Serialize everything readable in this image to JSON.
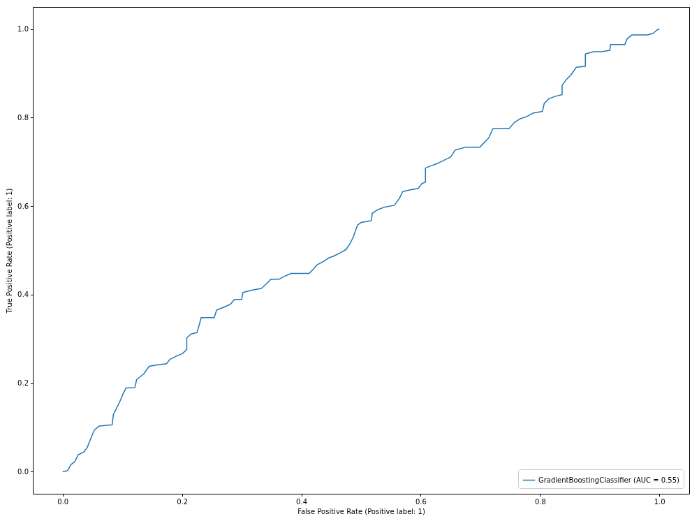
{
  "chart_data": {
    "type": "line",
    "xlabel": "False Positive Rate (Positive label: 1)",
    "ylabel": "True Positive Rate (Positive label: 1)",
    "xlim": [
      -0.05,
      1.05
    ],
    "ylim": [
      -0.05,
      1.05
    ],
    "xticks": [
      {
        "value": 0,
        "label": "0.0"
      },
      {
        "value": 0.2,
        "label": "0.2"
      },
      {
        "value": 0.4,
        "label": "0.4"
      },
      {
        "value": 0.6,
        "label": "0.6"
      },
      {
        "value": 0.8,
        "label": "0.8"
      },
      {
        "value": 1,
        "label": "1.0"
      }
    ],
    "yticks": [
      {
        "value": 0,
        "label": "0.0"
      },
      {
        "value": 0.2,
        "label": "0.2"
      },
      {
        "value": 0.4,
        "label": "0.4"
      },
      {
        "value": 0.6,
        "label": "0.6"
      },
      {
        "value": 0.8,
        "label": "0.8"
      },
      {
        "value": 1,
        "label": "1.0"
      }
    ],
    "grid": false,
    "legend": "bottom right",
    "series": [
      {
        "name": "GradientBoostingClassifier (AUC = 0.55)",
        "color": "#1f77b4",
        "x": [
          0,
          0.008,
          0.014,
          0.02,
          0.026,
          0.035,
          0.041,
          0.046,
          0.053,
          0.061,
          0.083,
          0.085,
          0.095,
          0.101,
          0.106,
          0.121,
          0.124,
          0.136,
          0.145,
          0.158,
          0.174,
          0.18,
          0.192,
          0.201,
          0.208,
          0.208,
          0.215,
          0.225,
          0.229,
          0.232,
          0.254,
          0.258,
          0.269,
          0.281,
          0.288,
          0.3,
          0.302,
          0.317,
          0.333,
          0.342,
          0.349,
          0.363,
          0.371,
          0.383,
          0.413,
          0.419,
          0.426,
          0.437,
          0.446,
          0.454,
          0.466,
          0.475,
          0.481,
          0.487,
          0.494,
          0.5,
          0.517,
          0.519,
          0.528,
          0.54,
          0.556,
          0.564,
          0.57,
          0.583,
          0.596,
          0.602,
          0.608,
          0.608,
          0.615,
          0.629,
          0.641,
          0.65,
          0.658,
          0.675,
          0.699,
          0.706,
          0.714,
          0.721,
          0.748,
          0.757,
          0.766,
          0.777,
          0.788,
          0.804,
          0.807,
          0.815,
          0.828,
          0.837,
          0.837,
          0.844,
          0.852,
          0.861,
          0.876,
          0.876,
          0.89,
          0.904,
          0.917,
          0.918,
          0.942,
          0.946,
          0.954,
          0.98,
          0.989,
          0.996,
          1
        ],
        "values": [
          0,
          0.002,
          0.016,
          0.022,
          0.038,
          0.044,
          0.054,
          0.071,
          0.094,
          0.103,
          0.106,
          0.129,
          0.156,
          0.175,
          0.189,
          0.19,
          0.208,
          0.221,
          0.238,
          0.241,
          0.244,
          0.254,
          0.262,
          0.267,
          0.276,
          0.302,
          0.311,
          0.314,
          0.332,
          0.348,
          0.348,
          0.365,
          0.371,
          0.378,
          0.389,
          0.389,
          0.405,
          0.41,
          0.414,
          0.425,
          0.435,
          0.435,
          0.441,
          0.448,
          0.448,
          0.456,
          0.467,
          0.475,
          0.483,
          0.487,
          0.495,
          0.502,
          0.514,
          0.53,
          0.557,
          0.563,
          0.567,
          0.584,
          0.592,
          0.598,
          0.602,
          0.617,
          0.633,
          0.637,
          0.64,
          0.651,
          0.654,
          0.686,
          0.69,
          0.697,
          0.705,
          0.711,
          0.727,
          0.733,
          0.733,
          0.743,
          0.754,
          0.775,
          0.775,
          0.789,
          0.797,
          0.802,
          0.81,
          0.814,
          0.832,
          0.843,
          0.849,
          0.852,
          0.873,
          0.886,
          0.897,
          0.914,
          0.916,
          0.944,
          0.949,
          0.949,
          0.952,
          0.965,
          0.965,
          0.978,
          0.987,
          0.987,
          0.99,
          0.998,
          1
        ]
      }
    ]
  }
}
